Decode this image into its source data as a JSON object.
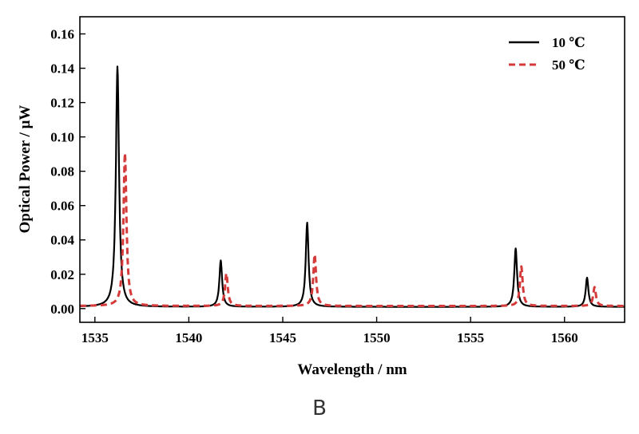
{
  "panel_label": "B",
  "chart_data": {
    "type": "line",
    "xlabel": "Wavelength / nm",
    "ylabel": "Optical Power / μW",
    "xlim": [
      1534.2,
      1563.2
    ],
    "ylim": [
      -0.008,
      0.17
    ],
    "x_ticks": [
      1535,
      1540,
      1545,
      1550,
      1555,
      1560
    ],
    "x_tick_labels": [
      "1535",
      "1540",
      "1545",
      "1550",
      "1555",
      "1560"
    ],
    "y_ticks": [
      0.0,
      0.02,
      0.04,
      0.06,
      0.08,
      0.1,
      0.12,
      0.14,
      0.16
    ],
    "y_tick_labels": [
      "0.00",
      "0.02",
      "0.04",
      "0.06",
      "0.08",
      "0.10",
      "0.12",
      "0.14",
      "0.16"
    ],
    "grid": false,
    "legend_position": "top-right",
    "series": [
      {
        "name": "10 ℃",
        "color": "#000000",
        "dash": "solid",
        "baseline": 0.001,
        "peaks": [
          {
            "x": 1536.2,
            "y": 0.14
          },
          {
            "x": 1541.7,
            "y": 0.027
          },
          {
            "x": 1546.3,
            "y": 0.049
          },
          {
            "x": 1557.4,
            "y": 0.034
          },
          {
            "x": 1561.2,
            "y": 0.017
          }
        ]
      },
      {
        "name": "50 ℃",
        "color": "#d43a3a",
        "dash": "dashed",
        "baseline": 0.0015,
        "peaks": [
          {
            "x": 1536.6,
            "y": 0.089
          },
          {
            "x": 1542.0,
            "y": 0.019
          },
          {
            "x": 1546.7,
            "y": 0.03
          },
          {
            "x": 1557.7,
            "y": 0.023
          },
          {
            "x": 1561.6,
            "y": 0.011
          }
        ]
      }
    ]
  }
}
